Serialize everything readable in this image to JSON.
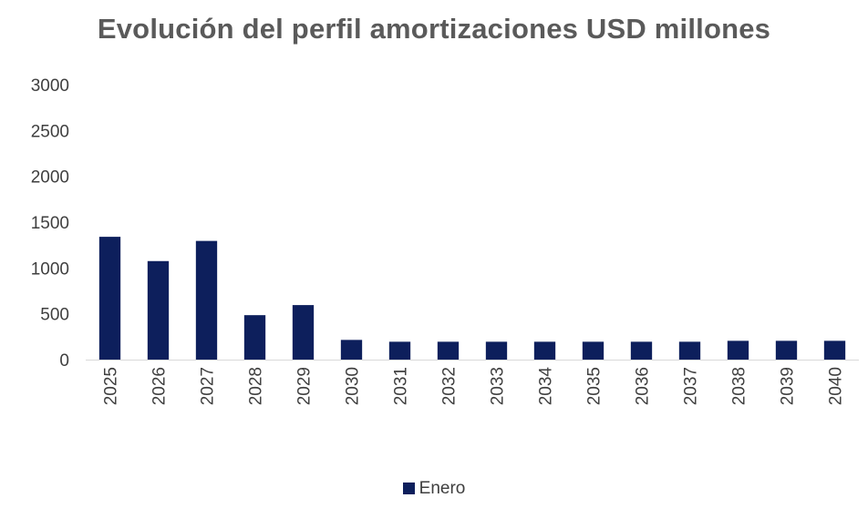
{
  "chart_data": {
    "type": "bar",
    "title": "Evolución del perfil amortizaciones USD millones",
    "categories": [
      "2025",
      "2026",
      "2027",
      "2028",
      "2029",
      "2030",
      "2031",
      "2032",
      "2033",
      "2034",
      "2035",
      "2036",
      "2037",
      "2038",
      "2039",
      "2040"
    ],
    "series": [
      {
        "name": "Enero",
        "color": "#0d1f5c",
        "values": [
          1340,
          1075,
          1295,
          485,
          595,
          215,
          195,
          195,
          195,
          195,
          195,
          195,
          195,
          205,
          205,
          205
        ]
      }
    ],
    "ylim": [
      0,
      3000
    ],
    "yticks": [
      0,
      500,
      1000,
      1500,
      2000,
      2500,
      3000
    ],
    "xlabel": "",
    "ylabel": "",
    "grid": false,
    "legend_position": "bottom"
  }
}
